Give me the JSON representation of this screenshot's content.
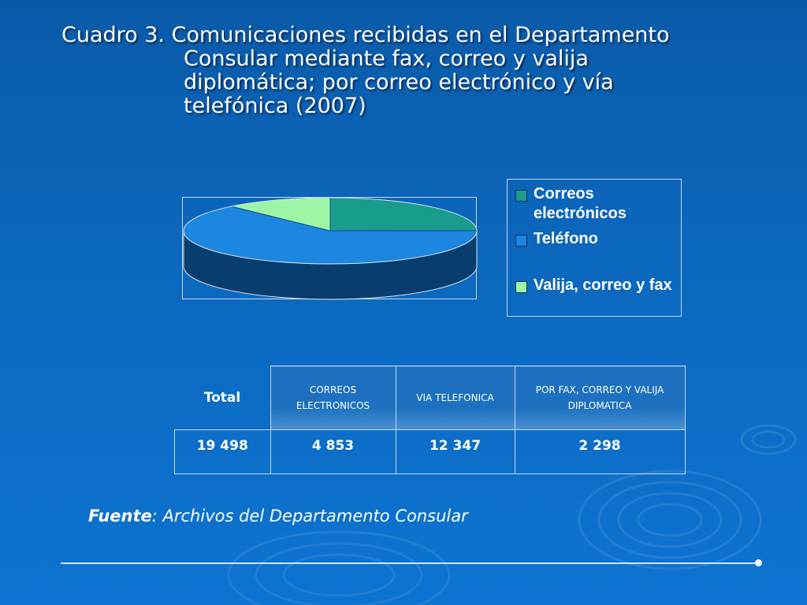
{
  "title": {
    "line1": "Cuadro 3. Comunicaciones recibidas en el Departamento",
    "line2": "Consular mediante fax, correo y valija",
    "line3": "diplomática; por correo electrónico y vía",
    "line4": "telefónica (2007)"
  },
  "chart_data": {
    "type": "pie",
    "categories": [
      "Correos electrónicos",
      "Teléfono",
      "Valija, correo y fax"
    ],
    "values": [
      4853,
      12347,
      2298
    ],
    "colors": [
      "#1a9c8c",
      "#1c86e0",
      "#9ff5a6"
    ],
    "legend_position": "right"
  },
  "legend": [
    {
      "label": "Correos electrónicos",
      "color": "#1a9c8c"
    },
    {
      "label": "Teléfono",
      "color": "#1c86e0"
    },
    {
      "label": "Valija, correo y fax",
      "color": "#9ff5a6"
    }
  ],
  "table": {
    "total_header": "Total",
    "headers": [
      "CORREOS ELECTRONICOS",
      "VIA TELEFONICA",
      "POR  FAX, CORREO Y VALIJA DIPLOMATICA"
    ],
    "total_value": "19 498",
    "values": [
      "4 853",
      "12 347",
      "2 298"
    ]
  },
  "source": {
    "label": "Fuente",
    "text": ": Archivos del Departamento Consular"
  }
}
